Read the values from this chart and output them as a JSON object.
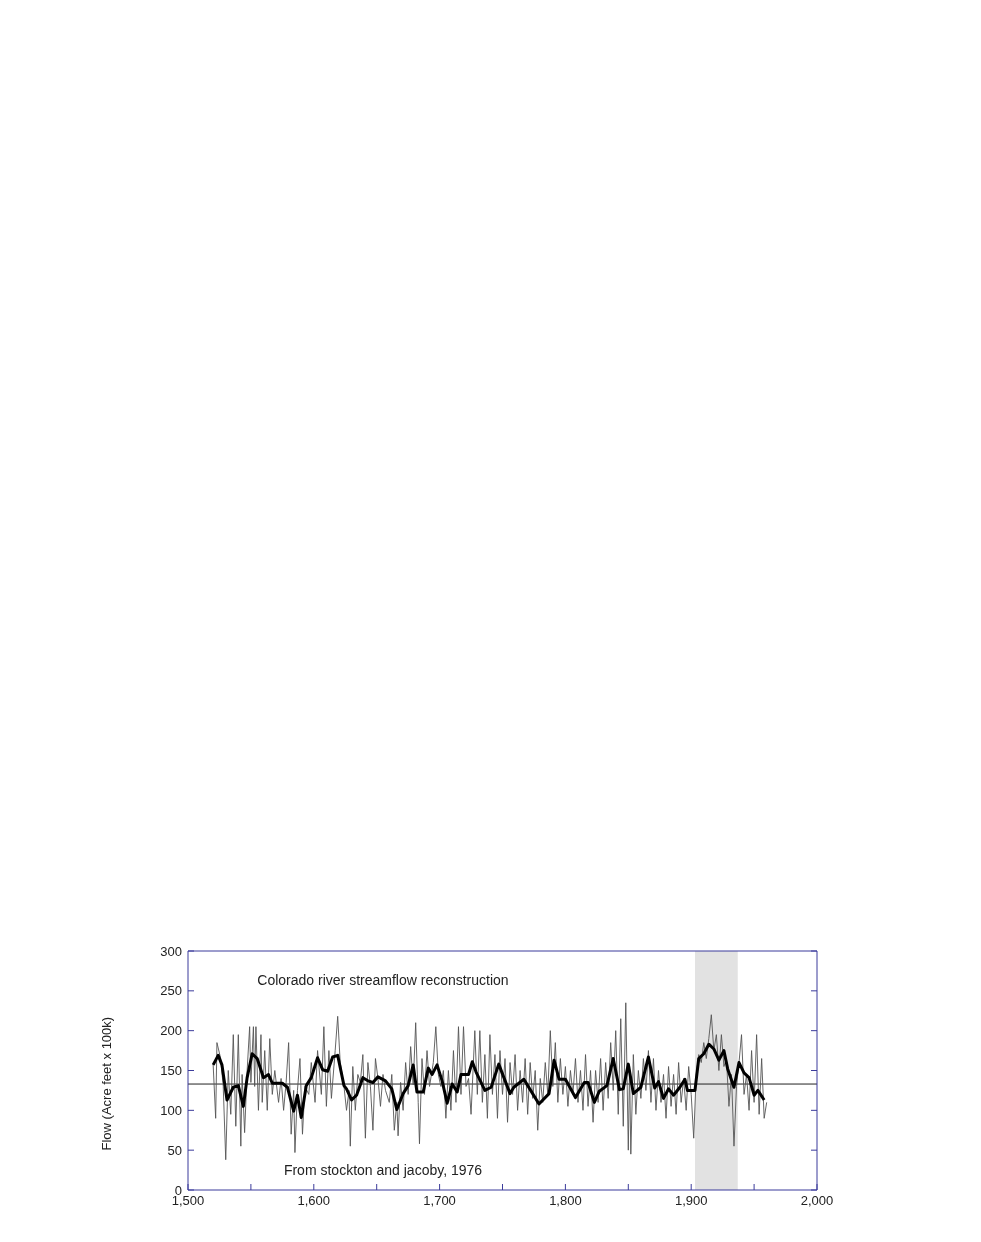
{
  "chart_data": {
    "type": "line",
    "ylabel": "Flow (Acre feet x 100k)",
    "annotations": [
      "Colorado river streamflow reconstruction",
      "From stockton and jacoby, 1976"
    ],
    "xlim": [
      1500,
      2000
    ],
    "xticks": [
      {
        "value": 1500,
        "label": "1,500"
      },
      {
        "value": 1550,
        "label": null
      },
      {
        "value": 1600,
        "label": "1,600"
      },
      {
        "value": 1650,
        "label": null
      },
      {
        "value": 1700,
        "label": "1,700"
      },
      {
        "value": 1750,
        "label": null
      },
      {
        "value": 1800,
        "label": "1,800"
      },
      {
        "value": 1850,
        "label": null
      },
      {
        "value": 1900,
        "label": "1,900"
      },
      {
        "value": 1950,
        "label": null
      },
      {
        "value": 2000,
        "label": "2,000"
      }
    ],
    "ylim": [
      0,
      300
    ],
    "yticks": [
      0,
      50,
      100,
      150,
      200,
      250,
      300
    ],
    "ref_lines": [
      {
        "axis": "y",
        "value": 133,
        "color": "#222222"
      }
    ],
    "bands": [
      {
        "axis": "x",
        "from": 1903,
        "to": 1937,
        "color": "#e2e2e2"
      }
    ],
    "series": [
      {
        "color": "#555555",
        "x": [
          1520,
          1522,
          1523,
          1526,
          1528,
          1530,
          1532,
          1534,
          1536,
          1538,
          1540,
          1542,
          1543,
          1545,
          1547,
          1549,
          1550,
          1552,
          1553,
          1554,
          1556,
          1558,
          1559,
          1561,
          1563,
          1565,
          1567,
          1569,
          1572,
          1574,
          1576,
          1578,
          1580,
          1582,
          1584,
          1585,
          1587,
          1589,
          1591,
          1593,
          1596,
          1598,
          1601,
          1603,
          1606,
          1608,
          1610,
          1612,
          1614,
          1617,
          1619,
          1621,
          1624,
          1626,
          1628,
          1629,
          1631,
          1633,
          1635,
          1637,
          1639,
          1641,
          1643,
          1645,
          1647,
          1649,
          1651,
          1653,
          1655,
          1657,
          1660,
          1662,
          1664,
          1666,
          1667,
          1669,
          1671,
          1673,
          1675,
          1677,
          1679,
          1681,
          1683,
          1684,
          1686,
          1688,
          1690,
          1692,
          1695,
          1697,
          1699,
          1701,
          1703,
          1705,
          1707,
          1709,
          1711,
          1713,
          1715,
          1717,
          1719,
          1721,
          1723,
          1725,
          1728,
          1730,
          1732,
          1734,
          1736,
          1738,
          1740,
          1742,
          1744,
          1746,
          1748,
          1750,
          1752,
          1754,
          1756,
          1758,
          1760,
          1762,
          1764,
          1766,
          1768,
          1770,
          1772,
          1774,
          1776,
          1778,
          1780,
          1782,
          1784,
          1786,
          1788,
          1790,
          1792,
          1794,
          1796,
          1798,
          1800,
          1802,
          1804,
          1806,
          1808,
          1810,
          1812,
          1814,
          1816,
          1818,
          1820,
          1822,
          1824,
          1826,
          1828,
          1830,
          1832,
          1834,
          1836,
          1838,
          1840,
          1842,
          1844,
          1846,
          1848,
          1850,
          1851,
          1852,
          1854,
          1856,
          1858,
          1860,
          1862,
          1864,
          1866,
          1868,
          1870,
          1872,
          1874,
          1876,
          1878,
          1880,
          1882,
          1884,
          1886,
          1888,
          1890,
          1892,
          1894,
          1896,
          1898,
          1900,
          1902,
          1904,
          1906,
          1908,
          1910,
          1912,
          1914,
          1916,
          1918,
          1920,
          1922,
          1924,
          1926,
          1928,
          1930,
          1932,
          1934,
          1936,
          1938,
          1940,
          1942,
          1944,
          1946,
          1948,
          1950,
          1952,
          1954,
          1956,
          1958,
          1960
        ],
        "values": [
          157,
          90,
          185,
          165,
          130,
          38,
          150,
          95,
          195,
          80,
          195,
          55,
          145,
          72,
          150,
          205,
          135,
          205,
          130,
          205,
          100,
          195,
          110,
          175,
          100,
          190,
          120,
          150,
          110,
          140,
          100,
          135,
          185,
          70,
          125,
          47,
          125,
          165,
          70,
          130,
          120,
          160,
          110,
          175,
          120,
          205,
          105,
          175,
          115,
          175,
          218,
          160,
          130,
          100,
          125,
          55,
          155,
          100,
          145,
          135,
          170,
          65,
          160,
          130,
          75,
          165,
          140,
          105,
          145,
          125,
          110,
          145,
          75,
          110,
          68,
          135,
          100,
          160,
          120,
          180,
          132,
          210,
          110,
          58,
          165,
          120,
          175,
          130,
          160,
          205,
          145,
          130,
          150,
          90,
          150,
          100,
          175,
          110,
          205,
          120,
          205,
          130,
          140,
          95,
          200,
          120,
          200,
          110,
          170,
          90,
          195,
          120,
          170,
          90,
          175,
          120,
          165,
          85,
          160,
          120,
          170,
          100,
          150,
          110,
          165,
          95,
          160,
          115,
          150,
          75,
          140,
          110,
          160,
          120,
          200,
          130,
          185,
          110,
          165,
          120,
          155,
          105,
          150,
          120,
          165,
          110,
          150,
          100,
          170,
          105,
          150,
          85,
          150,
          110,
          165,
          100,
          160,
          115,
          185,
          125,
          200,
          95,
          215,
          80,
          235,
          50,
          155,
          45,
          170,
          95,
          150,
          115,
          165,
          125,
          175,
          110,
          165,
          100,
          150,
          110,
          145,
          90,
          155,
          105,
          145,
          95,
          160,
          110,
          140,
          100,
          155,
          120,
          65,
          145,
          170,
          160,
          185,
          165,
          190,
          220,
          175,
          195,
          150,
          195,
          155,
          165,
          105,
          145,
          55,
          130,
          160,
          195,
          120,
          145,
          100,
          175,
          110,
          195,
          95,
          165,
          90,
          110
        ]
      },
      {
        "color": "#000000",
        "x": [
          1520,
          1524,
          1527,
          1531,
          1536,
          1540,
          1544,
          1547,
          1551,
          1555,
          1560,
          1564,
          1567,
          1575,
          1579,
          1584,
          1587,
          1590,
          1594,
          1598,
          1603,
          1607,
          1611,
          1615,
          1619,
          1624,
          1626,
          1630,
          1634,
          1639,
          1643,
          1647,
          1651,
          1657,
          1662,
          1666,
          1671,
          1675,
          1679,
          1682,
          1687,
          1691,
          1694,
          1698,
          1702,
          1706,
          1710,
          1714,
          1717,
          1723,
          1726,
          1729,
          1736,
          1741,
          1747,
          1756,
          1759,
          1767,
          1772,
          1779,
          1787,
          1791,
          1795,
          1800,
          1808,
          1815,
          1818,
          1823,
          1827,
          1833,
          1838,
          1843,
          1846,
          1850,
          1854,
          1860,
          1866,
          1871,
          1874,
          1878,
          1882,
          1886,
          1891,
          1895,
          1897,
          1903,
          1906,
          1910,
          1914,
          1918,
          1922,
          1926,
          1929,
          1934,
          1938,
          1942,
          1946,
          1950,
          1953,
          1958
        ],
        "values": [
          157,
          169,
          157,
          113,
          129,
          131,
          105,
          141,
          171,
          165,
          141,
          145,
          134,
          134,
          129,
          99,
          119,
          91,
          131,
          141,
          166,
          151,
          149,
          167,
          169,
          131,
          127,
          113,
          119,
          141,
          137,
          135,
          142,
          137,
          127,
          101,
          121,
          131,
          157,
          123,
          123,
          153,
          145,
          157,
          137,
          109,
          133,
          123,
          145,
          145,
          161,
          148,
          125,
          129,
          158,
          121,
          129,
          139,
          126,
          108,
          121,
          163,
          139,
          139,
          116,
          135,
          135,
          110,
          124,
          131,
          165,
          126,
          127,
          158,
          121,
          129,
          167,
          128,
          136,
          115,
          127,
          119,
          129,
          139,
          125,
          125,
          165,
          171,
          183,
          177,
          163,
          175,
          152,
          129,
          160,
          147,
          141,
          119,
          125,
          113
        ]
      }
    ]
  }
}
